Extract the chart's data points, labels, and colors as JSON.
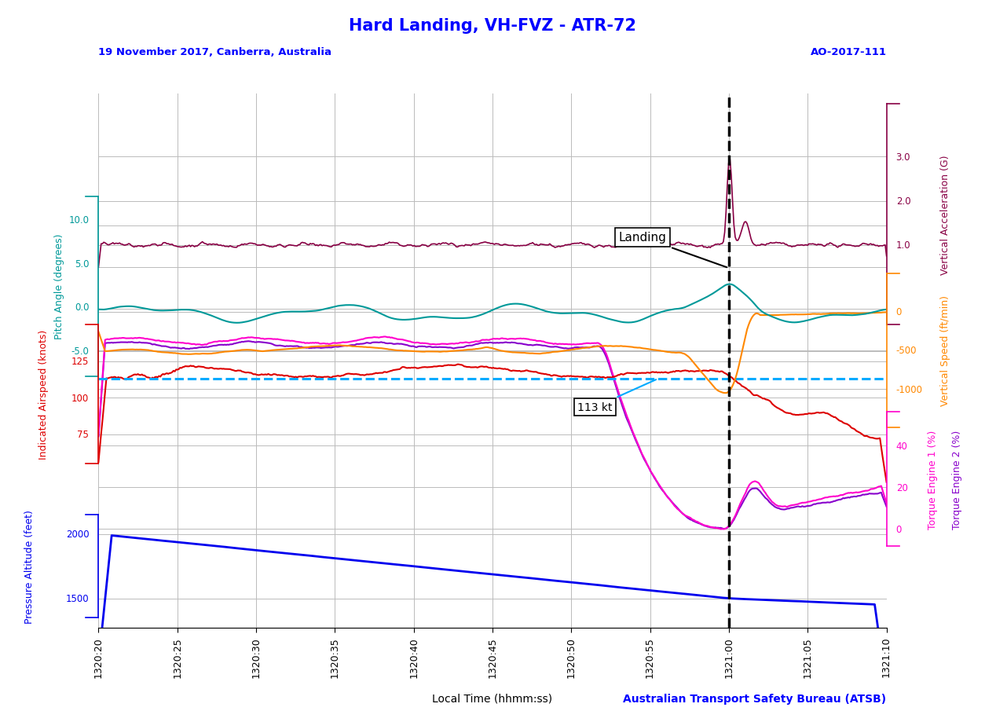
{
  "title": "Hard Landing, VH-FVZ - ATR-72",
  "subtitle_left": "19 November 2017, Canberra, Australia",
  "subtitle_right": "AO-2017-111",
  "xlabel": "Local Time (hhmm:ss)",
  "xlabel_right": "Australian Transport Safety Bureau (ATSB)",
  "xtick_labels": [
    "1320:20",
    "1320:25",
    "1320:30",
    "1320:35",
    "1320:40",
    "1320:45",
    "1320:50",
    "1320:55",
    "1321:00",
    "1321:05",
    "1321:10"
  ],
  "pitch_color": "#009999",
  "pitch_label": "Pitch Angle (degrees)",
  "pitch_ylim": [
    -8.0,
    13.5
  ],
  "pitch_ticks": [
    -5.0,
    0.0,
    5.0,
    10.0
  ],
  "vacc_color": "#880044",
  "vacc_label": "Vertical Acceleration (G)",
  "vacc_ylim": [
    -0.8,
    4.2
  ],
  "vacc_ticks": [
    1.0,
    2.0,
    3.0
  ],
  "vspd_color": "#ff8800",
  "vspd_label": "Vertical Speed (ft/min)",
  "vspd_ylim": [
    -1500,
    500
  ],
  "vspd_ticks": [
    -1000,
    -500,
    0
  ],
  "ias_color": "#dd0000",
  "ias_label": "Indicated Airspeed (knots)",
  "ias_ylim": [
    55,
    150
  ],
  "ias_ticks": [
    75,
    100,
    125
  ],
  "ref_speed_color": "#00aaff",
  "ref_speed_kt": 113,
  "torq1_color": "#ff00cc",
  "torq2_color": "#8800cc",
  "torq_label_1": "Torque Engine 1 (%)",
  "torq_label_2": "Torque Engine 2 (%)",
  "torq_ylim": [
    -8,
    56
  ],
  "torq_ticks": [
    0,
    20,
    40
  ],
  "alt_color": "#0000ee",
  "alt_label": "Pressure Altitude (feet)",
  "alt_ylim": [
    1350,
    2150
  ],
  "alt_ticks": [
    1500,
    2000
  ],
  "background_color": "#ffffff",
  "grid_color": "#bbbbbb",
  "title_color": "#0000ff",
  "subtitle_color": "#0000ff"
}
